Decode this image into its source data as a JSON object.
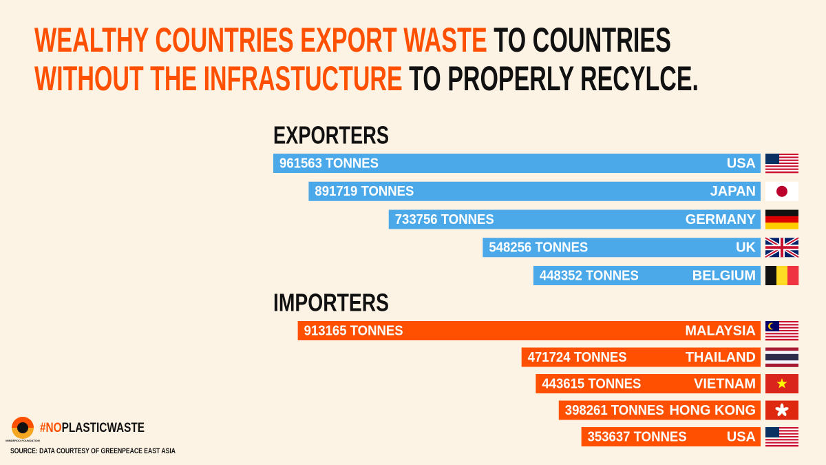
{
  "headline": [
    "WEALTHY COUNTRIES EXPORT WASTE",
    "TO COUNTRIES",
    "WITHOUT THE INFRASTUCTURE",
    "TO PROPERLY RECYLCE."
  ],
  "chart_data": [
    {
      "type": "bar",
      "title": "EXPORTERS",
      "categories": [
        "USA",
        "JAPAN",
        "GERMANY",
        "UK",
        "BELGIUM"
      ],
      "values": [
        961563,
        891719,
        733756,
        548256,
        448352
      ],
      "value_labels": [
        "961563 TONNES",
        "891719 TONNES",
        "733756 TONNES",
        "548256 TONNES",
        "448352 TONNES"
      ],
      "color": "#4ba9ea"
    },
    {
      "type": "bar",
      "title": "IMPORTERS",
      "categories": [
        "MALAYSIA",
        "THAILAND",
        "VIETNAM",
        "HONG KONG",
        "USA"
      ],
      "values": [
        913165,
        471724,
        443615,
        398261,
        353637
      ],
      "value_labels": [
        "913165 TONNES",
        "471724 TONNES",
        "443615 TONNES",
        "398261 TONNES",
        "353637 TONNES"
      ],
      "color": "#fe5000"
    }
  ],
  "logo": "MINDEROO FOUNDATION",
  "hashtag": [
    "#NO",
    "PLASTICWASTE"
  ],
  "source": "SOURCE: DATA COURTESY OF GREENPEACE EAST ASIA"
}
